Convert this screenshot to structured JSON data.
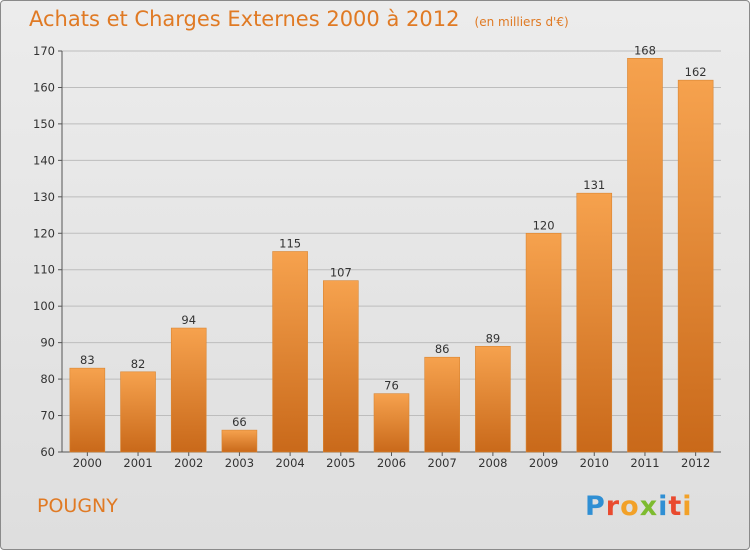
{
  "title": "Achats et Charges Externes 2000 à 2012",
  "unit_note": "(en milliers d'€)",
  "commune": "POUGNY",
  "logo": {
    "text": "Proxiti",
    "letters": [
      {
        "ch": "P",
        "color": "#2f8fd4"
      },
      {
        "ch": "r",
        "color": "#e94a2f"
      },
      {
        "ch": "o",
        "color": "#f2a128"
      },
      {
        "ch": "x",
        "color": "#7dbb2f"
      },
      {
        "ch": "i",
        "color": "#2f8fd4"
      },
      {
        "ch": "t",
        "color": "#e94a2f"
      },
      {
        "ch": "i",
        "color": "#f2a128"
      }
    ]
  },
  "colors": {
    "accent": "#e07a24",
    "bar_top": "#f6a24e",
    "bar_bottom": "#c9691a",
    "grid": "#bdbdbd",
    "axis_text": "#333333"
  },
  "chart_data": {
    "type": "bar",
    "title": "Achats et Charges Externes 2000 à 2012",
    "categories": [
      "2000",
      "2001",
      "2002",
      "2003",
      "2004",
      "2005",
      "2006",
      "2007",
      "2008",
      "2009",
      "2010",
      "2011",
      "2012"
    ],
    "values": [
      83,
      82,
      94,
      66,
      115,
      107,
      76,
      86,
      89,
      120,
      131,
      168,
      162
    ],
    "ylim": [
      60,
      170
    ],
    "yticks": [
      60,
      70,
      80,
      90,
      100,
      110,
      120,
      130,
      140,
      150,
      160,
      170
    ],
    "grid": true,
    "xlabel": "",
    "ylabel": ""
  }
}
